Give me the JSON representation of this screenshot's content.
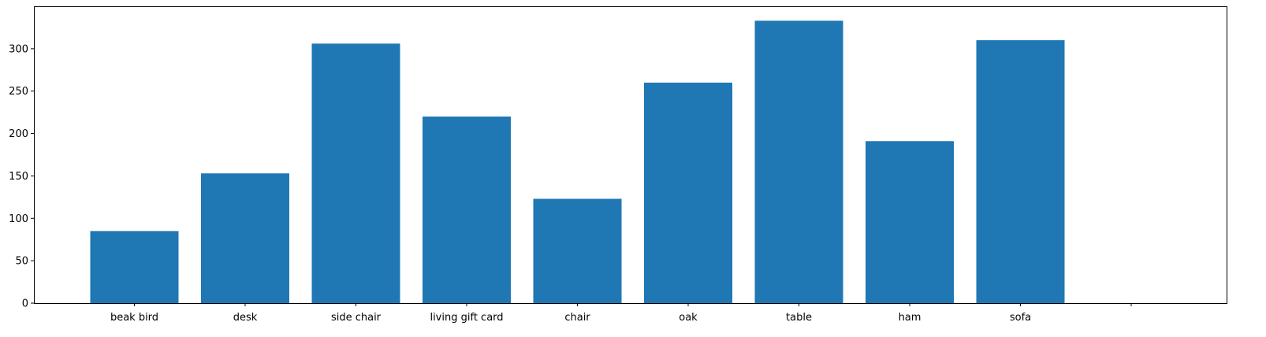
{
  "chart_data": {
    "type": "bar",
    "title": "",
    "xlabel": "",
    "ylabel": "",
    "categories": [
      "beak bird",
      "desk",
      "side chair",
      "living gift card",
      "chair",
      "oak",
      "table",
      "ham",
      "sofa",
      ""
    ],
    "values": [
      85,
      153,
      306,
      220,
      123,
      260,
      333,
      191,
      310,
      null
    ],
    "ylim": [
      0,
      350
    ],
    "yticks": [
      0,
      50,
      100,
      150,
      200,
      250,
      300
    ],
    "ytick_labels": [
      "0",
      "50",
      "100",
      "150",
      "200",
      "250",
      "300"
    ],
    "grid": false,
    "legend": "none",
    "colors": {
      "bar": "#1f77b4",
      "axis": "#000000",
      "background": "#ffffff"
    }
  }
}
